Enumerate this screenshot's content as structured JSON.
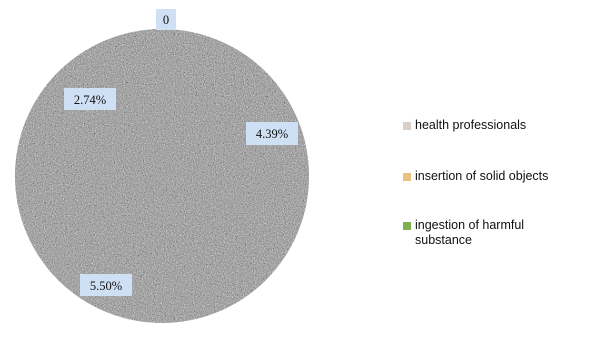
{
  "chart_data": {
    "type": "pie",
    "categories": [
      "health professionals",
      "insertion of solid objects",
      "ingestion of harmful substance"
    ],
    "data_labels": [
      "0",
      "4.39%",
      "5.50%",
      "2.74%"
    ],
    "colors": {
      "health professionals": "#d9cfc6",
      "insertion of solid objects": "#e8c17e",
      "ingestion of harmful substance": "#7fb04d",
      "label_box": "#cfe0f5",
      "pie_texture_light": "#d8d8d8",
      "pie_texture_dark": "#4a4a4a"
    },
    "legend_position": "right"
  },
  "legend": {
    "items": [
      {
        "label": "health professionals",
        "color": "#d9cfc6"
      },
      {
        "label": "insertion of solid objects",
        "color": "#e8c17e"
      },
      {
        "label": "ingestion of harmful substance",
        "color": "#7fb04d"
      }
    ]
  }
}
